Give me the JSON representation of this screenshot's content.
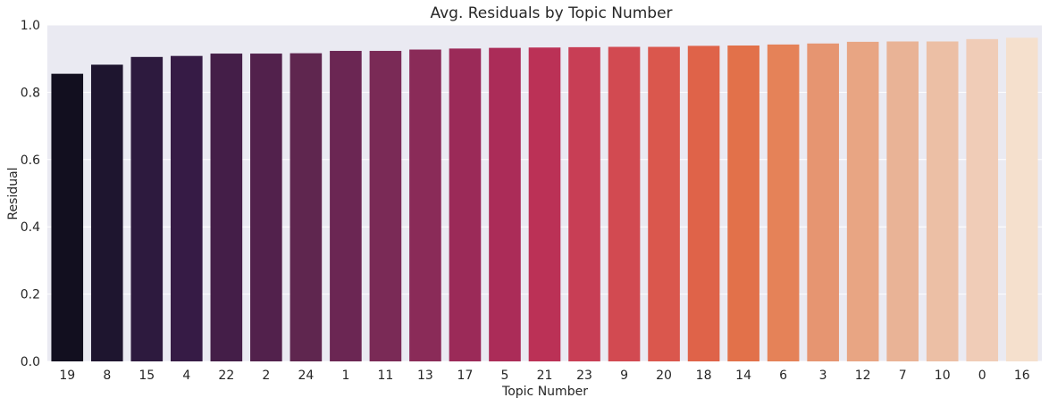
{
  "chart_data": {
    "type": "bar",
    "title": "Avg. Residuals by Topic Number",
    "xlabel": "Topic Number",
    "ylabel": "Residual",
    "ylim": [
      0,
      1.0
    ],
    "yticks": [
      "0.0",
      "0.2",
      "0.4",
      "0.6",
      "0.8",
      "1.0"
    ],
    "ytick_values": [
      0,
      0.2,
      0.4,
      0.6,
      0.8,
      1.0
    ],
    "grid": true,
    "categories": [
      "19",
      "8",
      "15",
      "4",
      "22",
      "2",
      "24",
      "1",
      "11",
      "13",
      "17",
      "5",
      "21",
      "23",
      "9",
      "20",
      "18",
      "14",
      "6",
      "3",
      "12",
      "7",
      "10",
      "0",
      "16"
    ],
    "values": [
      0.855,
      0.882,
      0.905,
      0.908,
      0.915,
      0.915,
      0.916,
      0.923,
      0.923,
      0.927,
      0.93,
      0.932,
      0.933,
      0.934,
      0.935,
      0.935,
      0.938,
      0.939,
      0.942,
      0.945,
      0.95,
      0.951,
      0.951,
      0.958,
      0.962
    ],
    "colors": [
      "#120f1f",
      "#1e152f",
      "#2d1a3e",
      "#361b45",
      "#441e48",
      "#52214c",
      "#5f264f",
      "#6b2653",
      "#7a2a56",
      "#8a2b58",
      "#9b2a58",
      "#ab2c58",
      "#bb3156",
      "#c83e55",
      "#d24a51",
      "#da574d",
      "#df6349",
      "#e2714a",
      "#e58258",
      "#e69571",
      "#e8a583",
      "#e9b396",
      "#ecbfa5",
      "#f0ccb7",
      "#f5e0cd"
    ],
    "background": "#eaeaf2",
    "gridColor": "#ffffff"
  }
}
